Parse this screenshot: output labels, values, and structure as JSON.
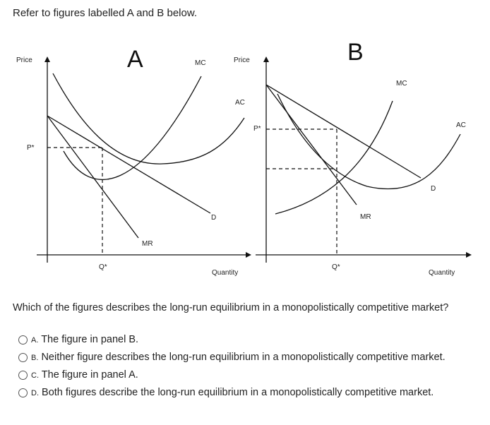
{
  "intro": "Refer to figures labelled A and B below.",
  "figure_a": {
    "panel_label": "A",
    "price_axis": "Price",
    "price_level": "P*",
    "quantity_level": "Q*",
    "curves": {
      "mc": "MC",
      "d": "D",
      "mr": "MR"
    }
  },
  "figure_b": {
    "panel_label": "B",
    "price_axis": "Price",
    "price_level": "P*",
    "quantity_level": "Q*",
    "curves": {
      "mc": "MC",
      "ac": "AC",
      "d": "D",
      "mr": "MR"
    },
    "quantity_axis": "Quantity"
  },
  "figure_a_ac": "AC",
  "figure_a_quantity": "Quantity",
  "question": "Which of the figures describes the long-run equilibrium in a monopolistically competitive market?",
  "options": [
    {
      "letter": "A.",
      "text": "The figure in panel B."
    },
    {
      "letter": "B.",
      "text": "Neither figure describes the long-run equilibrium in a monopolistically competitive market."
    },
    {
      "letter": "C.",
      "text": "The figure in panel A."
    },
    {
      "letter": "D.",
      "text": "Both figures describe the long-run equilibrium in a monopolistically competitive market."
    }
  ]
}
